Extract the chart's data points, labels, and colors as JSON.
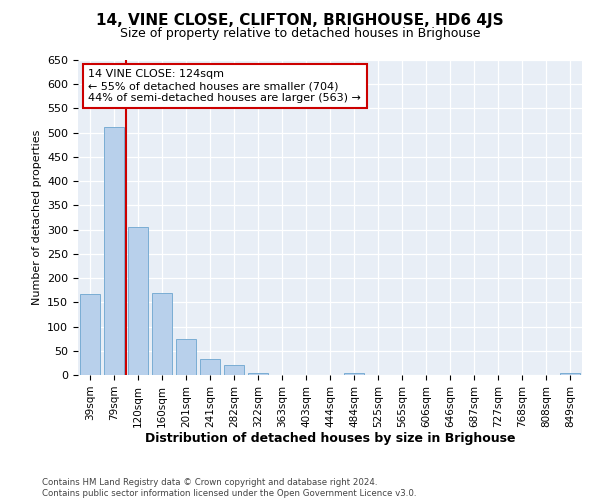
{
  "title": "14, VINE CLOSE, CLIFTON, BRIGHOUSE, HD6 4JS",
  "subtitle": "Size of property relative to detached houses in Brighouse",
  "xlabel": "Distribution of detached houses by size in Brighouse",
  "ylabel": "Number of detached properties",
  "categories": [
    "39sqm",
    "79sqm",
    "120sqm",
    "160sqm",
    "201sqm",
    "241sqm",
    "282sqm",
    "322sqm",
    "363sqm",
    "403sqm",
    "444sqm",
    "484sqm",
    "525sqm",
    "565sqm",
    "606sqm",
    "646sqm",
    "687sqm",
    "727sqm",
    "768sqm",
    "808sqm",
    "849sqm"
  ],
  "values": [
    168,
    512,
    305,
    170,
    75,
    32,
    20,
    5,
    0,
    0,
    0,
    5,
    0,
    0,
    0,
    0,
    0,
    0,
    0,
    0,
    5
  ],
  "bar_color": "#b8d0eb",
  "bar_edgecolor": "#7aadd4",
  "background_color": "#e8eef6",
  "ylim": [
    0,
    650
  ],
  "yticks": [
    0,
    50,
    100,
    150,
    200,
    250,
    300,
    350,
    400,
    450,
    500,
    550,
    600,
    650
  ],
  "property_line_x": 1.5,
  "property_line_color": "#cc0000",
  "annotation_text": "14 VINE CLOSE: 124sqm\n← 55% of detached houses are smaller (704)\n44% of semi-detached houses are larger (563) →",
  "annotation_box_facecolor": "#ffffff",
  "annotation_box_edgecolor": "#cc0000",
  "footer_line1": "Contains HM Land Registry data © Crown copyright and database right 2024.",
  "footer_line2": "Contains public sector information licensed under the Open Government Licence v3.0."
}
